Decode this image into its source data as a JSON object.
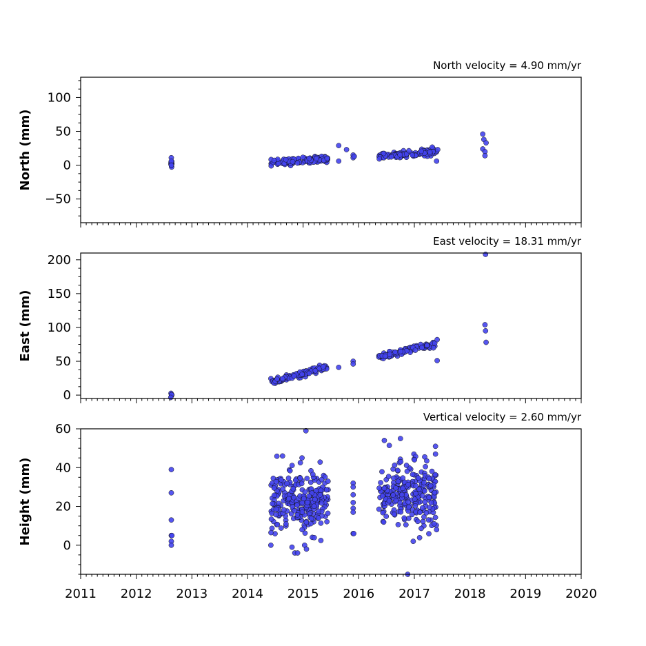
{
  "chart_data": [
    {
      "type": "scatter",
      "velocity_label": "North velocity = 4.90 mm/yr",
      "ylabel": "North (mm)",
      "xlim": [
        2011,
        2020
      ],
      "ylim": [
        -85,
        130
      ],
      "yticks": [
        -50,
        0,
        50,
        100
      ],
      "ytick_labels": [
        "−50",
        "0",
        "50",
        "100"
      ],
      "xticks": [
        2011,
        2012,
        2013,
        2014,
        2015,
        2016,
        2017,
        2018,
        2019,
        2020
      ],
      "xtick_labels": [],
      "clusters": [
        {
          "x_start": 2012.62,
          "x_end": 2012.64,
          "n": 8,
          "y_start": 2,
          "y_end": 4,
          "spread": 4
        },
        {
          "x_start": 2014.42,
          "x_end": 2015.45,
          "n": 110,
          "y_start": 3,
          "y_end": 10,
          "spread": 2.5
        },
        {
          "x_start": 2016.36,
          "x_end": 2017.4,
          "n": 110,
          "y_start": 13,
          "y_end": 20,
          "spread": 2.5
        }
      ],
      "points": [
        {
          "x": 2012.63,
          "y": 11
        },
        {
          "x": 2012.63,
          "y": 6
        },
        {
          "x": 2012.63,
          "y": 0
        },
        {
          "x": 2015.64,
          "y": 29
        },
        {
          "x": 2015.64,
          "y": 6
        },
        {
          "x": 2015.78,
          "y": 23
        },
        {
          "x": 2015.9,
          "y": 15
        },
        {
          "x": 2015.9,
          "y": 11
        },
        {
          "x": 2015.92,
          "y": 13
        },
        {
          "x": 2017.4,
          "y": 6
        },
        {
          "x": 2017.42,
          "y": 23
        },
        {
          "x": 2018.23,
          "y": 46
        },
        {
          "x": 2018.25,
          "y": 38
        },
        {
          "x": 2018.29,
          "y": 33
        },
        {
          "x": 2018.23,
          "y": 24
        },
        {
          "x": 2018.27,
          "y": 20
        },
        {
          "x": 2018.27,
          "y": 14
        }
      ]
    },
    {
      "type": "scatter",
      "velocity_label": "East velocity = 18.31 mm/yr",
      "ylabel": "East (mm)",
      "xlim": [
        2011,
        2020
      ],
      "ylim": [
        -5,
        210
      ],
      "yticks": [
        0,
        50,
        100,
        150,
        200
      ],
      "ytick_labels": [
        "0",
        "50",
        "100",
        "150",
        "200"
      ],
      "xticks": [
        2011,
        2012,
        2013,
        2014,
        2015,
        2016,
        2017,
        2018,
        2019,
        2020
      ],
      "xtick_labels": [],
      "clusters": [
        {
          "x_start": 2012.62,
          "x_end": 2012.64,
          "n": 6,
          "y_start": 0,
          "y_end": 0,
          "spread": 1
        },
        {
          "x_start": 2014.42,
          "x_end": 2015.45,
          "n": 110,
          "y_start": 19,
          "y_end": 42,
          "spread": 2
        },
        {
          "x_start": 2016.36,
          "x_end": 2017.4,
          "n": 110,
          "y_start": 56,
          "y_end": 76,
          "spread": 2
        }
      ],
      "points": [
        {
          "x": 2015.64,
          "y": 41
        },
        {
          "x": 2015.9,
          "y": 50
        },
        {
          "x": 2015.9,
          "y": 46
        },
        {
          "x": 2017.41,
          "y": 51
        },
        {
          "x": 2017.41,
          "y": 82
        },
        {
          "x": 2018.28,
          "y": 208
        },
        {
          "x": 2018.27,
          "y": 104
        },
        {
          "x": 2018.28,
          "y": 95
        },
        {
          "x": 2018.29,
          "y": 78
        }
      ]
    },
    {
      "type": "scatter",
      "velocity_label": "Vertical velocity = 2.60 mm/yr",
      "ylabel": "Height (mm)",
      "xlim": [
        2011,
        2020
      ],
      "ylim": [
        -15,
        60
      ],
      "yticks": [
        0,
        20,
        40,
        60
      ],
      "ytick_labels": [
        "0",
        "20",
        "40",
        "60"
      ],
      "xticks": [
        2011,
        2012,
        2013,
        2014,
        2015,
        2016,
        2017,
        2018,
        2019,
        2020
      ],
      "xtick_labels": [
        "2011",
        "2012",
        "2013",
        "2014",
        "2015",
        "2016",
        "2017",
        "2018",
        "2019",
        "2020"
      ],
      "clusters": [
        {
          "x_start": 2014.42,
          "x_end": 2015.45,
          "n": 260,
          "y_start": 21,
          "y_end": 24,
          "spread": 8
        },
        {
          "x_start": 2016.36,
          "x_end": 2017.4,
          "n": 260,
          "y_start": 26,
          "y_end": 27,
          "spread": 8
        }
      ],
      "points": [
        {
          "x": 2012.63,
          "y": 39
        },
        {
          "x": 2012.63,
          "y": 27
        },
        {
          "x": 2012.63,
          "y": 13
        },
        {
          "x": 2012.63,
          "y": 5
        },
        {
          "x": 2012.64,
          "y": 5
        },
        {
          "x": 2012.63,
          "y": 2
        },
        {
          "x": 2012.63,
          "y": 0
        },
        {
          "x": 2015.05,
          "y": 59
        },
        {
          "x": 2014.63,
          "y": 46
        },
        {
          "x": 2014.98,
          "y": 45
        },
        {
          "x": 2014.42,
          "y": 0
        },
        {
          "x": 2014.85,
          "y": -4
        },
        {
          "x": 2014.9,
          "y": -4
        },
        {
          "x": 2015.06,
          "y": -2
        },
        {
          "x": 2014.8,
          "y": -1
        },
        {
          "x": 2015.9,
          "y": 32
        },
        {
          "x": 2015.9,
          "y": 30
        },
        {
          "x": 2015.9,
          "y": 26
        },
        {
          "x": 2015.9,
          "y": 22
        },
        {
          "x": 2015.9,
          "y": 19
        },
        {
          "x": 2015.9,
          "y": 17
        },
        {
          "x": 2015.9,
          "y": 6
        },
        {
          "x": 2015.91,
          "y": 6
        },
        {
          "x": 2016.75,
          "y": 55
        },
        {
          "x": 2016.46,
          "y": 54
        },
        {
          "x": 2016.88,
          "y": -15
        },
        {
          "x": 2016.98,
          "y": 2
        },
        {
          "x": 2017.38,
          "y": 51
        },
        {
          "x": 2017.38,
          "y": 47
        },
        {
          "x": 2017.4,
          "y": 8
        }
      ]
    }
  ]
}
